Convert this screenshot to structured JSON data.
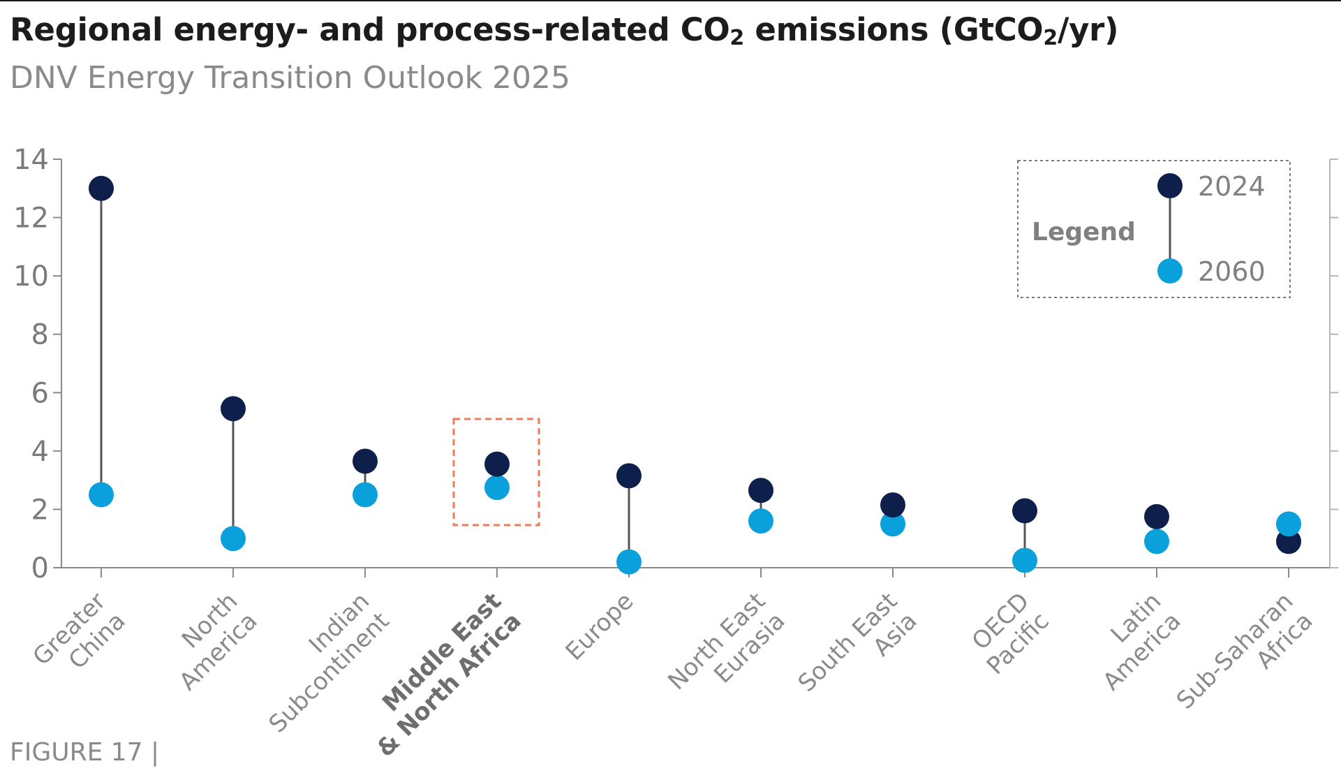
{
  "header": {
    "title": "Regional energy- and process-related CO",
    "title_sub": "2",
    "title_mid": " emissions (GtCO",
    "title_sub2": "2",
    "title_end": "/yr)",
    "subtitle": "DNV Energy Transition Outlook 2025",
    "figure_label": "FIGURE 17 |"
  },
  "chart_data": {
    "type": "dumbbell",
    "title": "Regional energy- and process-related CO2 emissions (GtCO2/yr)",
    "subtitle": "DNV Energy Transition Outlook 2025",
    "categories": [
      [
        "Greater",
        "China"
      ],
      [
        "North",
        "America"
      ],
      [
        "Indian",
        "Subcontinent"
      ],
      [
        "Middle East",
        "& North Africa"
      ],
      [
        "Europe"
      ],
      [
        "North East",
        "Eurasia"
      ],
      [
        "South East",
        "Asia"
      ],
      [
        "OECD",
        "Pacific"
      ],
      [
        "Latin",
        "America"
      ],
      [
        "Sub-Saharan",
        "Africa"
      ]
    ],
    "highlighted_category_index": 3,
    "series": [
      {
        "name": "2024",
        "color": "#0f1f4b",
        "values": [
          13.0,
          5.45,
          3.65,
          3.55,
          3.15,
          2.65,
          2.15,
          1.95,
          1.75,
          0.9
        ]
      },
      {
        "name": "2060",
        "color": "#0aa0dc",
        "values": [
          2.5,
          1.0,
          2.5,
          2.75,
          0.2,
          1.6,
          1.5,
          0.25,
          0.9,
          1.5
        ]
      }
    ],
    "yticks": [
      0,
      2,
      4,
      6,
      8,
      10,
      12,
      14
    ],
    "ylim": [
      0,
      14
    ],
    "xlabel": "",
    "ylabel": "",
    "grid": false,
    "legend": {
      "title": "Legend",
      "placement": "top-right",
      "connector_color": "#555555"
    },
    "highlight_color": "#f07a5a"
  }
}
